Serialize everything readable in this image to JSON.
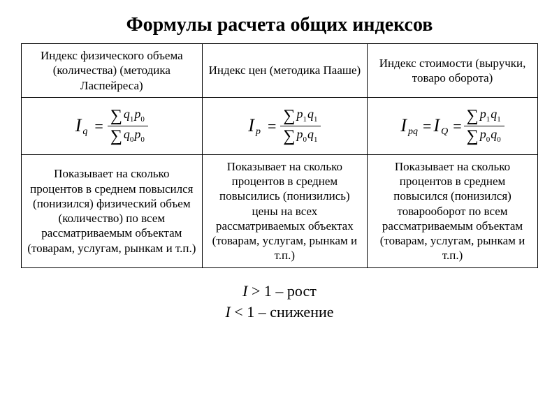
{
  "title": "Формулы расчета общих индексов",
  "table": {
    "col1": {
      "header": "Индекс физического объема (количества) (методика Ласпейреса)",
      "formula_var": "I",
      "formula_sub": "q",
      "num_q": "q",
      "num_qsub": "1",
      "num_p": "p",
      "num_psub": "0",
      "den_q": "q",
      "den_qsub": "0",
      "den_p": "p",
      "den_psub": "0",
      "desc": "Показывает на сколько процентов в среднем повысился (понизился) физический объем (количество) по всем рассматриваемым объектам (товарам, услугам, рынкам и т.п.)"
    },
    "col2": {
      "header": "Индекс цен (методика Пааше)",
      "formula_var": "I",
      "formula_sub": "p",
      "num_p": "p",
      "num_psub": "1",
      "num_q": "q",
      "num_qsub": "1",
      "den_p": "p",
      "den_psub": "0",
      "den_q": "q",
      "den_qsub": "1",
      "desc": "Показывает на сколько процентов в среднем повысились (понизились) цены на всех рассматриваемых объектах (товарам, услугам, рынкам и т.п.)"
    },
    "col3": {
      "header": "Индекс стоимости (выручки, товаро оборота)",
      "formula_var": "I",
      "formula_sub": "pq",
      "formula_var2": "I",
      "formula_sub2": "Q",
      "num_p": "p",
      "num_psub": "1",
      "num_q": "q",
      "num_qsub": "1",
      "den_p": "p",
      "den_psub": "0",
      "den_q": "q",
      "den_qsub": "0",
      "desc": "Показывает на сколько процентов в среднем повысился (понизился) товарооборот по всем рассматриваемым объектам (товарам, услугам, рынкам и т.п.)"
    }
  },
  "footer": {
    "line1_prefix": "I",
    "line1_rest": " > 1 – рост",
    "line2_prefix": "I",
    "line2_rest": " < 1 – снижение"
  }
}
